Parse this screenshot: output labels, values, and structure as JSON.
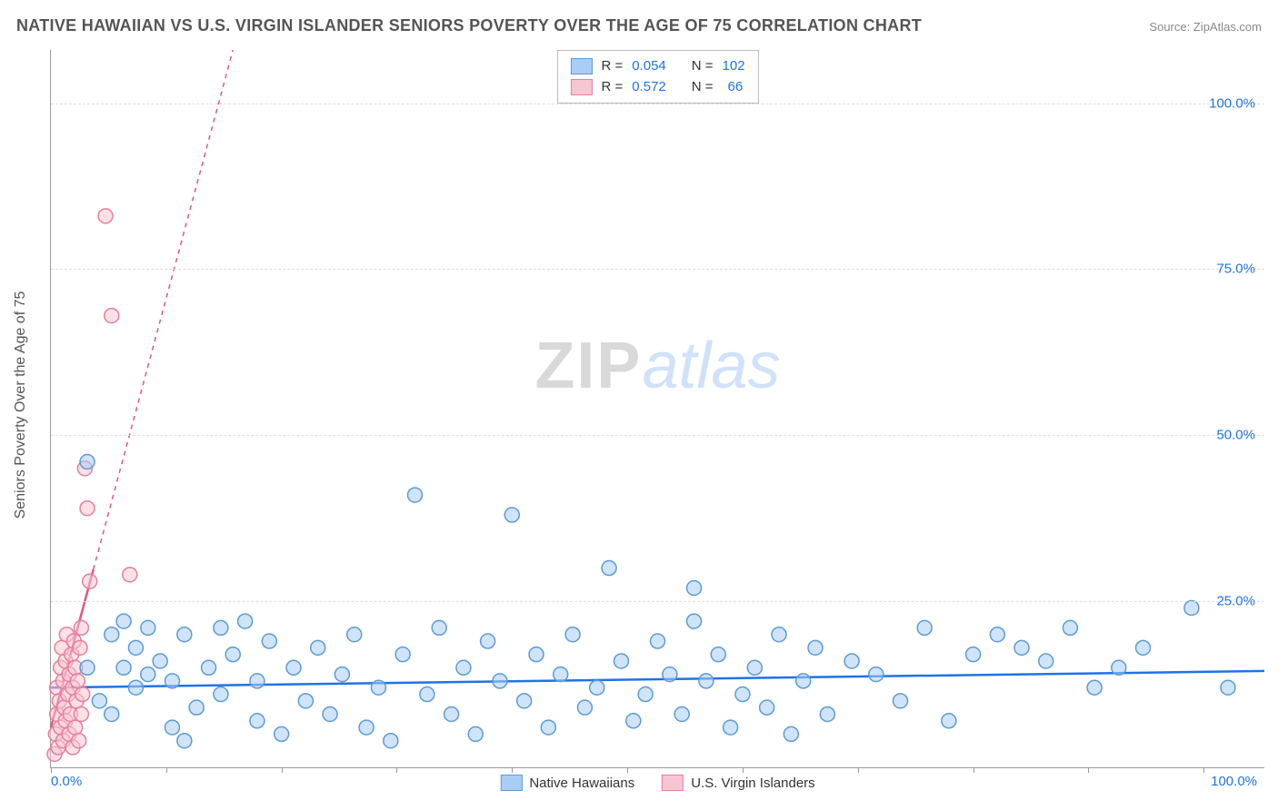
{
  "title": "NATIVE HAWAIIAN VS U.S. VIRGIN ISLANDER SENIORS POVERTY OVER THE AGE OF 75 CORRELATION CHART",
  "source_label": "Source:",
  "source_value": "ZipAtlas.com",
  "ylabel": "Seniors Poverty Over the Age of 75",
  "watermark_a": "ZIP",
  "watermark_b": "atlas",
  "chart": {
    "type": "scatter",
    "xlim": [
      0,
      100
    ],
    "ylim": [
      0,
      108
    ],
    "xtick_labels": [
      "0.0%",
      "100.0%"
    ],
    "xtick_positions_pct": [
      0,
      9.5,
      19,
      28.5,
      38,
      47.5,
      57,
      66.5,
      76,
      85.5,
      95
    ],
    "yticks": [
      {
        "value": 25,
        "label": "25.0%"
      },
      {
        "value": 50,
        "label": "50.0%"
      },
      {
        "value": 75,
        "label": "75.0%"
      },
      {
        "value": 100,
        "label": "100.0%"
      }
    ],
    "axis_label_color": "#1e73e8",
    "grid_color": "#dddddd",
    "background_color": "#ffffff",
    "marker_radius": 8,
    "marker_stroke_width": 1.5,
    "series": [
      {
        "name": "Native Hawaiians",
        "fill": "#a9cdf4",
        "stroke": "#5b9bd5",
        "fill_opacity": 0.55,
        "trend": {
          "x1": 0,
          "y1": 12,
          "x2": 100,
          "y2": 14.5,
          "color": "#1e73e8",
          "width": 2.5,
          "dash": "none"
        },
        "points": [
          [
            3,
            15
          ],
          [
            3,
            46
          ],
          [
            4,
            10
          ],
          [
            5,
            20
          ],
          [
            5,
            8
          ],
          [
            6,
            15
          ],
          [
            6,
            22
          ],
          [
            7,
            12
          ],
          [
            7,
            18
          ],
          [
            8,
            14
          ],
          [
            8,
            21
          ],
          [
            9,
            16
          ],
          [
            10,
            6
          ],
          [
            10,
            13
          ],
          [
            11,
            4
          ],
          [
            11,
            20
          ],
          [
            12,
            9
          ],
          [
            13,
            15
          ],
          [
            14,
            21
          ],
          [
            14,
            11
          ],
          [
            15,
            17
          ],
          [
            16,
            22
          ],
          [
            17,
            7
          ],
          [
            17,
            13
          ],
          [
            18,
            19
          ],
          [
            19,
            5
          ],
          [
            20,
            15
          ],
          [
            21,
            10
          ],
          [
            22,
            18
          ],
          [
            23,
            8
          ],
          [
            24,
            14
          ],
          [
            25,
            20
          ],
          [
            26,
            6
          ],
          [
            27,
            12
          ],
          [
            28,
            4
          ],
          [
            29,
            17
          ],
          [
            30,
            41
          ],
          [
            31,
            11
          ],
          [
            32,
            21
          ],
          [
            33,
            8
          ],
          [
            34,
            15
          ],
          [
            35,
            5
          ],
          [
            36,
            19
          ],
          [
            37,
            13
          ],
          [
            38,
            38
          ],
          [
            39,
            10
          ],
          [
            40,
            17
          ],
          [
            41,
            6
          ],
          [
            42,
            14
          ],
          [
            43,
            20
          ],
          [
            44,
            9
          ],
          [
            45,
            12
          ],
          [
            46,
            30
          ],
          [
            47,
            16
          ],
          [
            48,
            7
          ],
          [
            49,
            11
          ],
          [
            50,
            19
          ],
          [
            51,
            14
          ],
          [
            52,
            8
          ],
          [
            53,
            22
          ],
          [
            53,
            27
          ],
          [
            54,
            13
          ],
          [
            55,
            17
          ],
          [
            56,
            6
          ],
          [
            57,
            11
          ],
          [
            58,
            15
          ],
          [
            59,
            9
          ],
          [
            60,
            20
          ],
          [
            61,
            5
          ],
          [
            62,
            13
          ],
          [
            63,
            18
          ],
          [
            64,
            8
          ],
          [
            66,
            16
          ],
          [
            68,
            14
          ],
          [
            70,
            10
          ],
          [
            72,
            21
          ],
          [
            74,
            7
          ],
          [
            76,
            17
          ],
          [
            78,
            20
          ],
          [
            80,
            18
          ],
          [
            82,
            16
          ],
          [
            84,
            21
          ],
          [
            86,
            12
          ],
          [
            88,
            15
          ],
          [
            90,
            18
          ],
          [
            94,
            24
          ],
          [
            97,
            12
          ]
        ]
      },
      {
        "name": "U.S. Virgin Islanders",
        "fill": "#f8c6d2",
        "stroke": "#e77ea0",
        "fill_opacity": 0.55,
        "trend": {
          "x1": 0,
          "y1": 6,
          "x2": 15,
          "y2": 108,
          "solid_until_x": 3.5,
          "color": "#e55383",
          "width": 2.5,
          "dash": "5,5"
        },
        "points": [
          [
            0.3,
            2
          ],
          [
            0.4,
            5
          ],
          [
            0.5,
            8
          ],
          [
            0.5,
            12
          ],
          [
            0.6,
            3
          ],
          [
            0.7,
            10
          ],
          [
            0.8,
            15
          ],
          [
            0.8,
            6
          ],
          [
            0.9,
            18
          ],
          [
            1.0,
            4
          ],
          [
            1.0,
            13
          ],
          [
            1.1,
            9
          ],
          [
            1.2,
            16
          ],
          [
            1.2,
            7
          ],
          [
            1.3,
            20
          ],
          [
            1.4,
            11
          ],
          [
            1.5,
            5
          ],
          [
            1.5,
            14
          ],
          [
            1.6,
            8
          ],
          [
            1.7,
            17
          ],
          [
            1.8,
            3
          ],
          [
            1.8,
            12
          ],
          [
            1.9,
            19
          ],
          [
            2.0,
            6
          ],
          [
            2.0,
            15
          ],
          [
            2.1,
            10
          ],
          [
            2.2,
            13
          ],
          [
            2.3,
            4
          ],
          [
            2.4,
            18
          ],
          [
            2.5,
            8
          ],
          [
            2.5,
            21
          ],
          [
            2.6,
            11
          ],
          [
            2.8,
            45
          ],
          [
            3.0,
            39
          ],
          [
            3.2,
            28
          ],
          [
            4.5,
            83
          ],
          [
            5.0,
            68
          ],
          [
            6.5,
            29
          ]
        ]
      }
    ],
    "legend_top": [
      {
        "swatch_fill": "#a9cdf4",
        "swatch_stroke": "#5b9bd5",
        "r_label": "R =",
        "r_value": "0.054",
        "n_label": "N =",
        "n_value": "102"
      },
      {
        "swatch_fill": "#f8c6d2",
        "swatch_stroke": "#e77ea0",
        "r_label": "R =",
        "r_value": "0.572",
        "n_label": "N =",
        "n_value": "66"
      }
    ],
    "legend_bottom": [
      {
        "swatch_fill": "#a9cdf4",
        "swatch_stroke": "#5b9bd5",
        "label": "Native Hawaiians"
      },
      {
        "swatch_fill": "#f8c6d2",
        "swatch_stroke": "#e77ea0",
        "label": "U.S. Virgin Islanders"
      }
    ]
  }
}
